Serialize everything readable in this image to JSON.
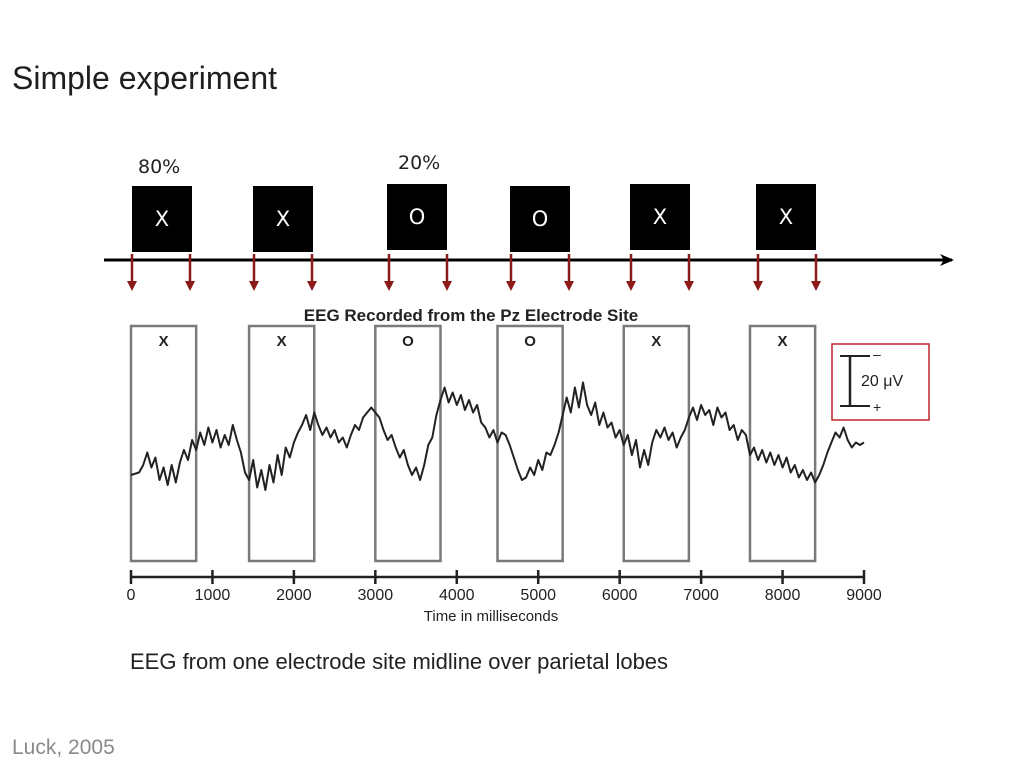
{
  "slide": {
    "title": "Simple experiment",
    "caption": "EEG from one electrode site midline over parietal lobes",
    "citation": "Luck, 2005"
  },
  "stimuli": {
    "probabilities": [
      "80%",
      "20%"
    ],
    "items": [
      "X",
      "X",
      "O",
      "O",
      "X",
      "X"
    ]
  },
  "colors": {
    "stimulus_box": "#000000",
    "marker_arrow": "#8b1a1a",
    "scale_box": "#c0262c",
    "window_box": "#7a7a7a",
    "trace": "#222222"
  },
  "chart_data": {
    "type": "line",
    "title": "EEG Recorded from the Pz Electrode Site",
    "xlabel": "Time in milliseconds",
    "xlim": [
      0,
      9000
    ],
    "x_ticks": [
      "0",
      "1000",
      "2000",
      "3000",
      "4000",
      "5000",
      "6000",
      "7000",
      "8000",
      "9000"
    ],
    "stimulus_windows": [
      {
        "label": "X",
        "start": 0,
        "end": 800
      },
      {
        "label": "X",
        "start": 1450,
        "end": 2250
      },
      {
        "label": "O",
        "start": 3000,
        "end": 3800
      },
      {
        "label": "O",
        "start": 4500,
        "end": 5300
      },
      {
        "label": "X",
        "start": 6050,
        "end": 6850
      },
      {
        "label": "X",
        "start": 7600,
        "end": 8400
      }
    ],
    "scale_bar": {
      "value_label": "20 μV",
      "top_sign": "–",
      "bottom_sign": "+"
    },
    "series": [
      {
        "values": [
          [
            0,
            -6
          ],
          [
            100,
            -5
          ],
          [
            150,
            -2
          ],
          [
            200,
            3
          ],
          [
            250,
            -3
          ],
          [
            300,
            1
          ],
          [
            350,
            -8
          ],
          [
            400,
            -3
          ],
          [
            450,
            -10
          ],
          [
            500,
            -2
          ],
          [
            550,
            -9
          ],
          [
            600,
            -1
          ],
          [
            650,
            4
          ],
          [
            700,
            0
          ],
          [
            750,
            8
          ],
          [
            800,
            4
          ],
          [
            850,
            11
          ],
          [
            900,
            6
          ],
          [
            950,
            13
          ],
          [
            1000,
            7
          ],
          [
            1050,
            12
          ],
          [
            1100,
            5
          ],
          [
            1150,
            10
          ],
          [
            1200,
            6
          ],
          [
            1250,
            14
          ],
          [
            1300,
            8
          ],
          [
            1350,
            3
          ],
          [
            1400,
            -5
          ],
          [
            1450,
            -8
          ],
          [
            1500,
            0
          ],
          [
            1550,
            -11
          ],
          [
            1600,
            -4
          ],
          [
            1650,
            -12
          ],
          [
            1700,
            -2
          ],
          [
            1750,
            -9
          ],
          [
            1800,
            2
          ],
          [
            1850,
            -6
          ],
          [
            1900,
            5
          ],
          [
            1950,
            1
          ],
          [
            2000,
            7
          ],
          [
            2050,
            11
          ],
          [
            2100,
            14
          ],
          [
            2150,
            18
          ],
          [
            2200,
            12
          ],
          [
            2250,
            19
          ],
          [
            2300,
            14
          ],
          [
            2350,
            10
          ],
          [
            2400,
            13
          ],
          [
            2450,
            9
          ],
          [
            2500,
            12
          ],
          [
            2550,
            7
          ],
          [
            2600,
            9
          ],
          [
            2650,
            5
          ],
          [
            2700,
            10
          ],
          [
            2750,
            14
          ],
          [
            2800,
            12
          ],
          [
            2850,
            17
          ],
          [
            2900,
            19
          ],
          [
            2950,
            21
          ],
          [
            3000,
            19
          ],
          [
            3050,
            17
          ],
          [
            3100,
            12
          ],
          [
            3150,
            8
          ],
          [
            3200,
            10
          ],
          [
            3250,
            5
          ],
          [
            3300,
            1
          ],
          [
            3350,
            4
          ],
          [
            3400,
            -2
          ],
          [
            3450,
            -6
          ],
          [
            3500,
            -3
          ],
          [
            3550,
            -8
          ],
          [
            3600,
            -2
          ],
          [
            3650,
            6
          ],
          [
            3700,
            9
          ],
          [
            3750,
            18
          ],
          [
            3800,
            24
          ],
          [
            3850,
            29
          ],
          [
            3900,
            23
          ],
          [
            3950,
            27
          ],
          [
            4000,
            22
          ],
          [
            4050,
            26
          ],
          [
            4100,
            20
          ],
          [
            4150,
            24
          ],
          [
            4200,
            19
          ],
          [
            4250,
            22
          ],
          [
            4300,
            15
          ],
          [
            4350,
            13
          ],
          [
            4400,
            9
          ],
          [
            4450,
            12
          ],
          [
            4500,
            7
          ],
          [
            4550,
            11
          ],
          [
            4600,
            10
          ],
          [
            4650,
            6
          ],
          [
            4700,
            1
          ],
          [
            4750,
            -4
          ],
          [
            4800,
            -8
          ],
          [
            4850,
            -7
          ],
          [
            4900,
            -3
          ],
          [
            4950,
            -6
          ],
          [
            5000,
            0
          ],
          [
            5050,
            -4
          ],
          [
            5100,
            3
          ],
          [
            5150,
            2
          ],
          [
            5200,
            6
          ],
          [
            5250,
            11
          ],
          [
            5300,
            18
          ],
          [
            5350,
            25
          ],
          [
            5400,
            19
          ],
          [
            5450,
            29
          ],
          [
            5500,
            21
          ],
          [
            5550,
            31
          ],
          [
            5600,
            22
          ],
          [
            5650,
            18
          ],
          [
            5700,
            23
          ],
          [
            5750,
            14
          ],
          [
            5800,
            19
          ],
          [
            5850,
            13
          ],
          [
            5900,
            15
          ],
          [
            5950,
            9
          ],
          [
            6000,
            12
          ],
          [
            6050,
            6
          ],
          [
            6100,
            10
          ],
          [
            6150,
            2
          ],
          [
            6200,
            8
          ],
          [
            6250,
            -3
          ],
          [
            6300,
            4
          ],
          [
            6350,
            -2
          ],
          [
            6400,
            7
          ],
          [
            6450,
            12
          ],
          [
            6500,
            9
          ],
          [
            6550,
            13
          ],
          [
            6600,
            8
          ],
          [
            6650,
            11
          ],
          [
            6700,
            5
          ],
          [
            6750,
            9
          ],
          [
            6800,
            12
          ],
          [
            6850,
            17
          ],
          [
            6900,
            21
          ],
          [
            6950,
            16
          ],
          [
            7000,
            22
          ],
          [
            7050,
            18
          ],
          [
            7100,
            20
          ],
          [
            7150,
            14
          ],
          [
            7200,
            21
          ],
          [
            7250,
            17
          ],
          [
            7300,
            19
          ],
          [
            7350,
            12
          ],
          [
            7400,
            14
          ],
          [
            7450,
            8
          ],
          [
            7500,
            12
          ],
          [
            7550,
            10
          ],
          [
            7600,
            2
          ],
          [
            7650,
            5
          ],
          [
            7700,
            0
          ],
          [
            7750,
            4
          ],
          [
            7800,
            -1
          ],
          [
            7850,
            3
          ],
          [
            7900,
            -2
          ],
          [
            7950,
            2
          ],
          [
            8000,
            -3
          ],
          [
            8050,
            1
          ],
          [
            8100,
            -5
          ],
          [
            8150,
            -2
          ],
          [
            8200,
            -7
          ],
          [
            8250,
            -4
          ],
          [
            8300,
            -8
          ],
          [
            8350,
            -5
          ],
          [
            8400,
            -9
          ],
          [
            8450,
            -6
          ],
          [
            8500,
            -2
          ],
          [
            8550,
            3
          ],
          [
            8600,
            7
          ],
          [
            8650,
            11
          ],
          [
            8700,
            9
          ],
          [
            8750,
            13
          ],
          [
            8800,
            8
          ],
          [
            8850,
            5
          ],
          [
            8900,
            7
          ],
          [
            8950,
            6
          ],
          [
            9000,
            7
          ]
        ]
      }
    ]
  }
}
